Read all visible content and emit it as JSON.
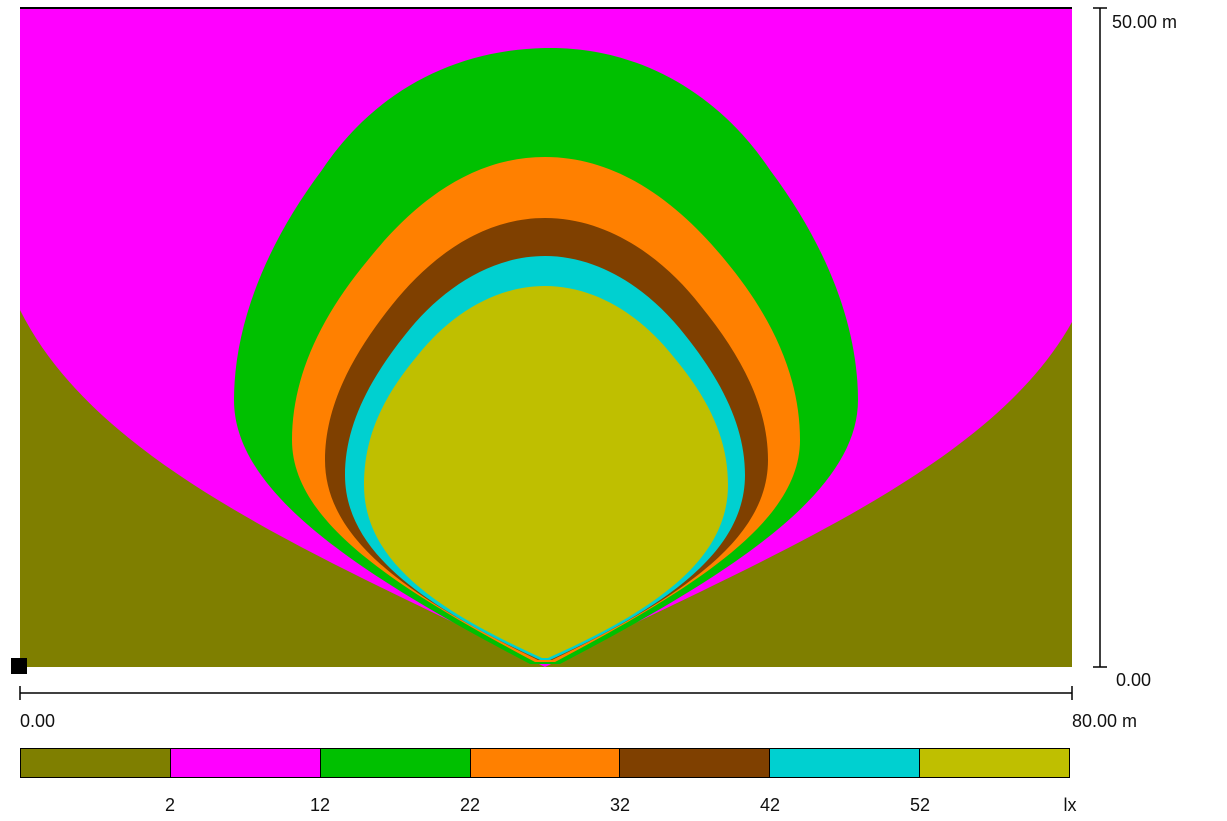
{
  "chart_data": {
    "type": "heatmap",
    "x_axis": {
      "min_label": "0.00",
      "max_label": "80.00 m",
      "range": [
        0,
        80
      ]
    },
    "y_axis": {
      "min_label": "0.00",
      "max_label": "50.00 m",
      "range": [
        0,
        50
      ]
    },
    "legend": {
      "unit": "lx",
      "thresholds": [
        "2",
        "12",
        "22",
        "32",
        "42",
        "52"
      ],
      "colors": [
        "#7f7f00",
        "#ff00ff",
        "#00c000",
        "#ff8000",
        "#7f4000",
        "#00d0d0",
        "#bfbf00"
      ]
    },
    "isolines_lx": [
      2,
      12,
      22,
      32,
      42,
      52
    ]
  }
}
